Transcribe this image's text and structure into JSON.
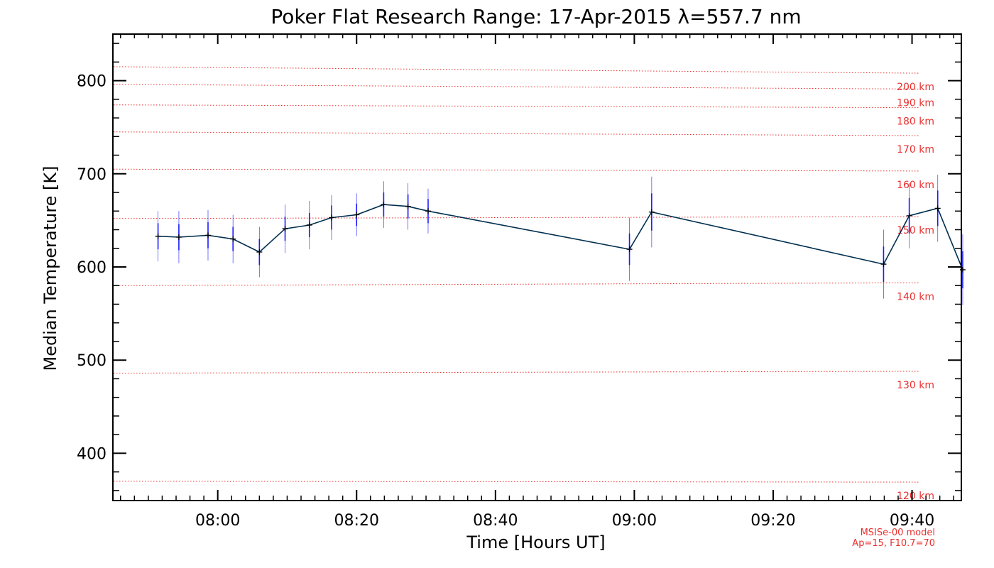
{
  "chart_data": {
    "type": "line",
    "title": "Poker Flat Research Range: 17-Apr-2015 λ=557.7 nm",
    "xlabel": "Time [Hours UT]",
    "ylabel": "Median Temperature [K]",
    "xlim": [
      465,
      587
    ],
    "ylim": [
      350,
      850
    ],
    "x_ticks": [
      {
        "value": 480,
        "label": "08:00"
      },
      {
        "value": 500,
        "label": "08:20"
      },
      {
        "value": 520,
        "label": "08:40"
      },
      {
        "value": 540,
        "label": "09:00"
      },
      {
        "value": 560,
        "label": "09:20"
      },
      {
        "value": 580,
        "label": "09:40"
      }
    ],
    "y_ticks": [
      {
        "value": 400,
        "label": "400"
      },
      {
        "value": 500,
        "label": "500"
      },
      {
        "value": 600,
        "label": "600"
      },
      {
        "value": 700,
        "label": "700"
      },
      {
        "value": 800,
        "label": "800"
      }
    ],
    "series": [
      {
        "x": [
          471.4,
          474.4,
          478.6,
          482.2,
          486.0,
          489.7,
          493.2,
          496.4,
          500.0,
          503.9,
          507.4,
          510.3,
          539.3,
          542.5,
          575.9,
          579.6,
          583.7,
          587.3
        ],
        "y": [
          633,
          632,
          634,
          630,
          616,
          641,
          645,
          653,
          656,
          667,
          665,
          660,
          619,
          659,
          603,
          655,
          663,
          597
        ],
        "err": [
          14,
          14,
          14,
          13,
          14,
          13,
          13,
          13,
          12,
          13,
          13,
          13,
          17,
          20,
          19,
          19,
          19,
          20
        ],
        "err_outer": [
          27,
          28,
          27,
          26,
          27,
          26,
          26,
          24,
          23,
          25,
          25,
          24,
          34,
          38,
          37,
          35,
          36,
          38
        ],
        "line_color": "#002f4f",
        "error_color": "#1a1aff"
      }
    ],
    "reference_lines": [
      {
        "label": "120 km",
        "y_start": 370,
        "y_end": 369
      },
      {
        "label": "130 km",
        "y_start": 486,
        "y_end": 488
      },
      {
        "label": "140 km",
        "y_start": 580,
        "y_end": 583
      },
      {
        "label": "150 km",
        "y_start": 652,
        "y_end": 654
      },
      {
        "label": "160 km",
        "y_start": 705,
        "y_end": 703
      },
      {
        "label": "170 km",
        "y_start": 745,
        "y_end": 741
      },
      {
        "label": "180 km",
        "y_start": 774,
        "y_end": 771
      },
      {
        "label": "190 km",
        "y_start": 796,
        "y_end": 791
      },
      {
        "label": "200 km",
        "y_start": 815,
        "y_end": 808
      }
    ],
    "reference_color": "#e8302f",
    "notes": [
      "MSISe-00 model",
      "Ap=15, F10.7=70"
    ],
    "grid": false
  }
}
